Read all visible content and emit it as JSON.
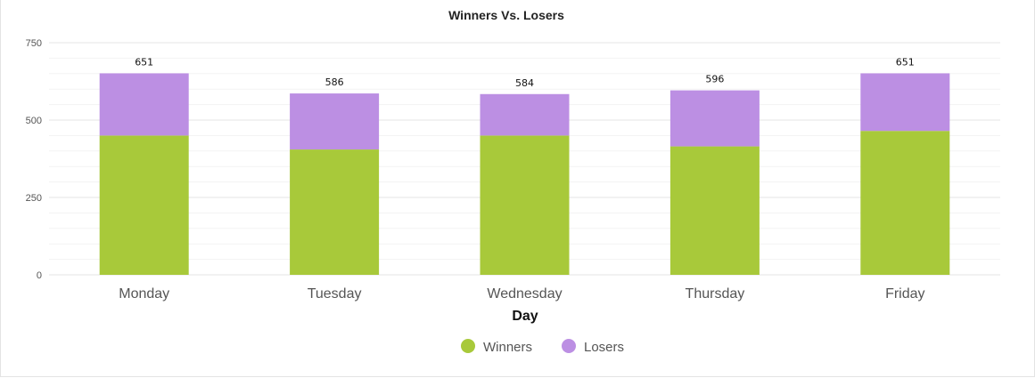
{
  "chart_data": {
    "type": "bar",
    "stacked": true,
    "title": "Winners Vs. Losers",
    "xlabel": "Day",
    "ylabel": "",
    "categories": [
      "Monday",
      "Tuesday",
      "Wednesday",
      "Thursday",
      "Friday"
    ],
    "series": [
      {
        "name": "Winners",
        "color": "#a8c93a",
        "values": [
          450,
          405,
          450,
          415,
          465
        ]
      },
      {
        "name": "Losers",
        "color": "#bc8fe3",
        "values": [
          201,
          181,
          134,
          181,
          186
        ]
      }
    ],
    "totals": [
      651,
      586,
      584,
      596,
      651
    ],
    "ylim": [
      0,
      750
    ],
    "yticks": [
      0,
      250,
      500,
      750
    ],
    "grid": true,
    "legend": "bottom-center"
  }
}
